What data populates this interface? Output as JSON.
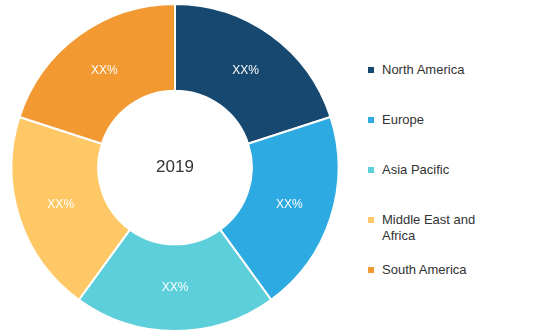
{
  "chart_data": {
    "type": "doughnut",
    "categories": [
      "North America",
      "Europe",
      "Asia Pacific",
      "Middle East and Africa",
      "South America"
    ],
    "values": [
      20,
      20,
      20,
      20,
      20
    ],
    "value_labels": [
      "XX%",
      "XX%",
      "XX%",
      "XX%",
      "XX%"
    ],
    "colors": [
      "#17486f",
      "#2eaae2",
      "#5dcfdb",
      "#fdc865",
      "#f39932"
    ],
    "data_labels": true,
    "legend": "right",
    "annotations": [
      "2019"
    ]
  }
}
